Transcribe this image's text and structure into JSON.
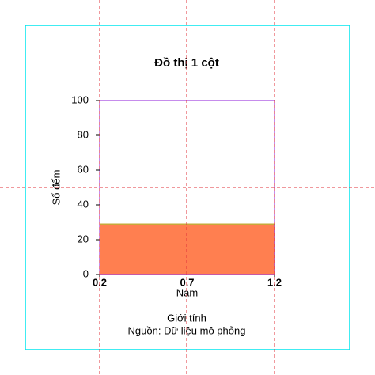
{
  "chart_data": {
    "type": "bar",
    "title": "Đồ thị 1 cột",
    "categories": [
      "Nam"
    ],
    "x": [
      0.7
    ],
    "values": [
      29
    ],
    "color": "#ff7f50",
    "xlabel": "Giới tính",
    "ylabel": "Số đếm",
    "caption": "Nguồn: Dữ liệu mô phỏng",
    "xlim": [
      0.2,
      1.2
    ],
    "xticks": [
      0.2,
      0.7,
      1.2
    ],
    "ylim": [
      0,
      100
    ],
    "yticks": [
      0,
      20,
      40,
      60,
      80,
      100
    ]
  }
}
